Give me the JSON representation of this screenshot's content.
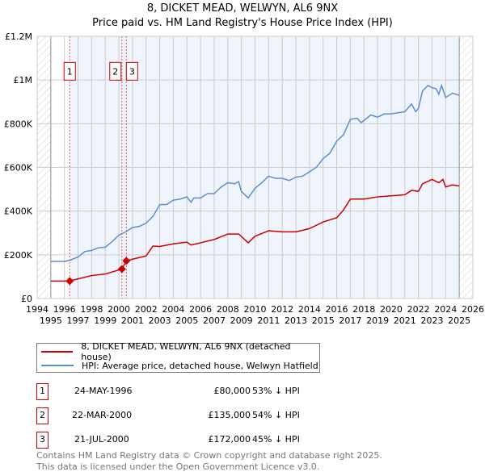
{
  "title": "8, DICKET MEAD, WELWYN, AL6 9NX",
  "subtitle": "Price paid vs. HM Land Registry's House Price Index (HPI)",
  "chart_data": {
    "type": "line",
    "title": "8, DICKET MEAD, WELWYN, AL6 9NX",
    "xlim": [
      1994,
      2026
    ],
    "ylim": [
      0,
      1200000
    ],
    "x_ticks": [
      "1994",
      "1995",
      "1996",
      "1997",
      "1998",
      "1999",
      "2000",
      "2001",
      "2002",
      "2003",
      "2004",
      "2005",
      "2006",
      "2007",
      "2008",
      "2009",
      "2010",
      "2011",
      "2012",
      "2013",
      "2014",
      "2015",
      "2016",
      "2017",
      "2018",
      "2019",
      "2020",
      "2021",
      "2022",
      "2023",
      "2024",
      "2025",
      "2026"
    ],
    "y_ticks": [
      {
        "v": 0,
        "label": "£0"
      },
      {
        "v": 200000,
        "label": "£200K"
      },
      {
        "v": 400000,
        "label": "£400K"
      },
      {
        "v": 600000,
        "label": "£600K"
      },
      {
        "v": 800000,
        "label": "£800K"
      },
      {
        "v": 1000000,
        "label": "£1M"
      },
      {
        "v": 1200000,
        "label": "£1.2M"
      }
    ],
    "grid": true,
    "series": [
      {
        "name": "8, DICKET MEAD, WELWYN, AL6 9NX (detached house)",
        "color": "#cc0000",
        "x": [
          1995,
          1996.39,
          1997,
          1998,
          1999,
          2000.22,
          2000.55,
          2001,
          2002,
          2002.5,
          2003,
          2004,
          2005,
          2005.3,
          2006,
          2007,
          2008,
          2008.8,
          2009.5,
          2010,
          2011,
          2012,
          2013,
          2014,
          2015,
          2016,
          2016.5,
          2017,
          2018,
          2019,
          2020,
          2021,
          2021.5,
          2022,
          2022.3,
          2023,
          2023.5,
          2023.8,
          2024,
          2024.5,
          2025
        ],
        "y": [
          80000,
          80000,
          90000,
          105000,
          112000,
          135000,
          172000,
          180000,
          195000,
          240000,
          238000,
          250000,
          258000,
          245000,
          255000,
          270000,
          295000,
          295000,
          255000,
          285000,
          310000,
          305000,
          305000,
          320000,
          350000,
          370000,
          405000,
          455000,
          455000,
          465000,
          470000,
          475000,
          495000,
          490000,
          525000,
          545000,
          530000,
          545000,
          510000,
          520000,
          515000
        ]
      },
      {
        "name": "HPI: Average price, detached house, Welwyn Hatfield",
        "color": "#5b8fd0",
        "x": [
          1995,
          1996,
          1996.4,
          1997,
          1997.5,
          1998,
          1998.5,
          1999,
          1999.5,
          2000,
          2000.5,
          2001,
          2001.5,
          2002,
          2002.5,
          2003,
          2003.5,
          2004,
          2004.5,
          2005,
          2005.3,
          2005.5,
          2006,
          2006.5,
          2007,
          2007.5,
          2008,
          2008.5,
          2008.8,
          2009,
          2009.5,
          2010,
          2010.5,
          2011,
          2011.5,
          2012,
          2012.5,
          2013,
          2013.5,
          2014,
          2014.5,
          2015,
          2015.5,
          2016,
          2016.5,
          2017,
          2017.5,
          2017.8,
          2018,
          2018.5,
          2019,
          2019.5,
          2020,
          2020.5,
          2021,
          2021.5,
          2021.8,
          2022,
          2022.3,
          2022.7,
          2023,
          2023.3,
          2023.5,
          2023.7,
          2024,
          2024.5,
          2025
        ],
        "y": [
          170000,
          170000,
          175000,
          190000,
          215000,
          220000,
          232000,
          235000,
          260000,
          290000,
          305000,
          325000,
          330000,
          345000,
          375000,
          430000,
          430000,
          450000,
          455000,
          465000,
          440000,
          460000,
          460000,
          480000,
          480000,
          510000,
          530000,
          525000,
          535000,
          490000,
          460000,
          505000,
          530000,
          560000,
          550000,
          550000,
          540000,
          555000,
          560000,
          580000,
          600000,
          640000,
          665000,
          720000,
          750000,
          820000,
          825000,
          805000,
          815000,
          840000,
          830000,
          845000,
          845000,
          850000,
          855000,
          890000,
          855000,
          870000,
          950000,
          975000,
          965000,
          960000,
          935000,
          975000,
          920000,
          940000,
          930000
        ]
      }
    ],
    "sales": [
      {
        "n": "1",
        "x": 1996.39,
        "price": 80000
      },
      {
        "n": "2",
        "x": 2000.22,
        "price": 135000
      },
      {
        "n": "3",
        "x": 2000.55,
        "price": 172000
      }
    ]
  },
  "legend": {
    "property": "8, DICKET MEAD, WELWYN, AL6 9NX (detached house)",
    "hpi": "HPI: Average price, detached house, Welwyn Hatfield"
  },
  "transactions": [
    {
      "n": "1",
      "date": "24-MAY-1996",
      "price": "£80,000",
      "hpi": "53% ↓ HPI"
    },
    {
      "n": "2",
      "date": "22-MAR-2000",
      "price": "£135,000",
      "hpi": "54% ↓ HPI"
    },
    {
      "n": "3",
      "date": "21-JUL-2000",
      "price": "£172,000",
      "hpi": "45% ↓ HPI"
    }
  ],
  "footer": {
    "line1": "Contains HM Land Registry data © Crown copyright and database right 2025.",
    "line2": "This data is licensed under the Open Government Licence v3.0."
  }
}
